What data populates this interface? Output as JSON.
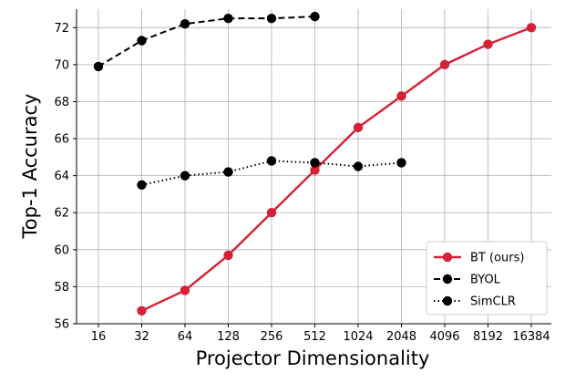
{
  "chart_data": {
    "type": "line",
    "xlabel": "Projector Dimensionality",
    "ylabel": "Top-1 Accuracy",
    "categories": [
      "16",
      "32",
      "64",
      "128",
      "256",
      "512",
      "1024",
      "2048",
      "4096",
      "8192",
      "16384"
    ],
    "ylim": [
      56,
      73
    ],
    "yticks": [
      56,
      58,
      60,
      62,
      64,
      66,
      68,
      70,
      72
    ],
    "grid": true,
    "legend_position": "bottom-right",
    "series": [
      {
        "name": "BT (ours)",
        "color": "#d62035",
        "style": "solid",
        "x": [
          "32",
          "64",
          "128",
          "256",
          "512",
          "1024",
          "2048",
          "4096",
          "8192",
          "16384"
        ],
        "values": [
          56.7,
          57.8,
          59.7,
          62.0,
          64.3,
          66.6,
          68.3,
          70.0,
          71.1,
          72.0
        ]
      },
      {
        "name": "BYOL",
        "color": "#000000",
        "style": "dashed",
        "x": [
          "16",
          "32",
          "64",
          "128",
          "256",
          "512"
        ],
        "values": [
          69.9,
          71.3,
          72.2,
          72.5,
          72.5,
          72.6
        ]
      },
      {
        "name": "SimCLR",
        "color": "#000000",
        "style": "dotted",
        "x": [
          "32",
          "64",
          "128",
          "256",
          "512",
          "1024",
          "2048"
        ],
        "values": [
          63.5,
          64.0,
          64.2,
          64.8,
          64.7,
          64.5,
          64.7
        ]
      }
    ]
  }
}
